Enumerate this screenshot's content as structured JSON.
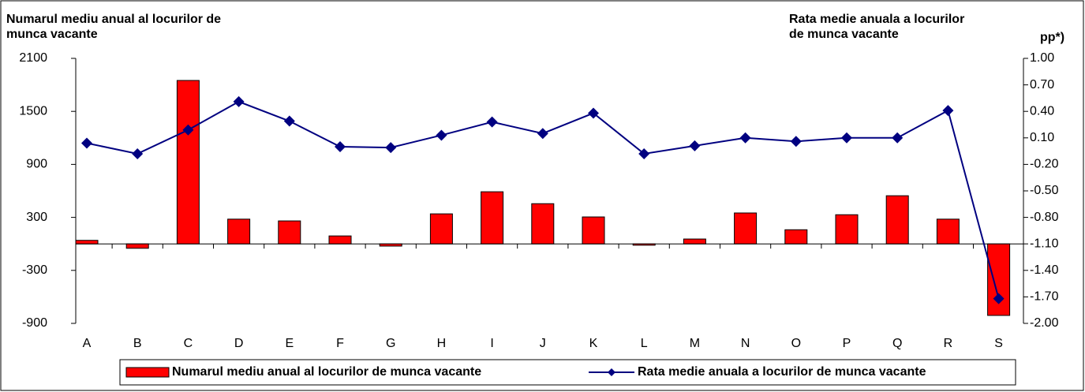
{
  "chart_data": {
    "type": "bar_line",
    "y_label": "Numarul mediu anual al locurilor de munca vacante",
    "y2_label": "Rata medie anuala a  locurilor de munca vacante",
    "y2_unit": "pp*)",
    "categories": [
      "A",
      "B",
      "C",
      "D",
      "E",
      "F",
      "G",
      "H",
      "I",
      "J",
      "K",
      "L",
      "M",
      "N",
      "O",
      "P",
      "Q",
      "R",
      "S"
    ],
    "series": [
      {
        "name": "Numarul mediu anual al locurilor de munca vacante",
        "type": "bar",
        "color": "#ff0000",
        "values": [
          40,
          -50,
          1850,
          280,
          260,
          90,
          -25,
          340,
          590,
          455,
          305,
          -15,
          55,
          350,
          160,
          330,
          545,
          280,
          -810
        ]
      },
      {
        "name": "Rata medie anuala a locurilor de munca vacante",
        "type": "line",
        "axis": "y2",
        "color": "#000080",
        "values": [
          0.04,
          -0.08,
          0.19,
          0.51,
          0.29,
          0.0,
          -0.01,
          0.13,
          0.28,
          0.15,
          0.38,
          -0.08,
          0.01,
          0.1,
          0.06,
          0.1,
          0.1,
          0.41,
          -1.72
        ]
      }
    ],
    "ylim": [
      -900,
      2100
    ],
    "yticks": [
      -900,
      -300,
      300,
      900,
      1500,
      2100
    ],
    "y2lim": [
      -2.0,
      1.0
    ],
    "y2ticks": [
      {
        "value": -2.0,
        "label": "-2.00"
      },
      {
        "value": -1.7,
        "label": "-1.70"
      },
      {
        "value": -1.4,
        "label": "-1.40"
      },
      {
        "value": -1.1,
        "label": "-1.10"
      },
      {
        "value": -0.8,
        "label": "-0.80"
      },
      {
        "value": -0.5,
        "label": "-0.50"
      },
      {
        "value": -0.2,
        "label": "-0.20"
      },
      {
        "value": 0.1,
        "label": "0.10"
      },
      {
        "value": 0.4,
        "label": "0.40"
      },
      {
        "value": 0.7,
        "label": "0.70"
      },
      {
        "value": 1.0,
        "label": "1.00"
      }
    ],
    "legend": "bottom"
  }
}
